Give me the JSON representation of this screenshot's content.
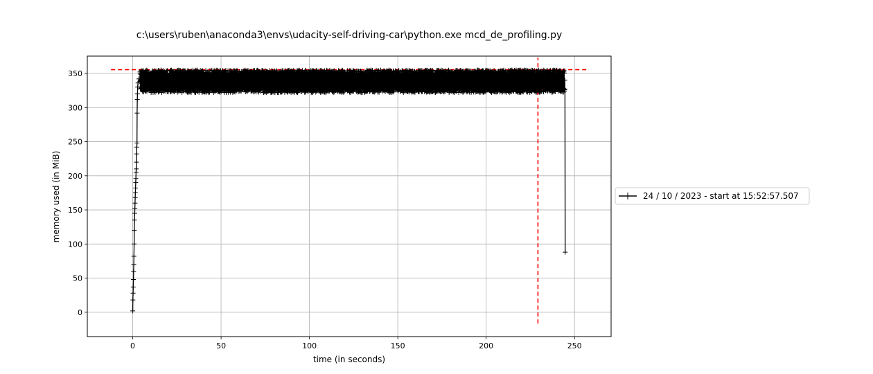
{
  "chart_data": {
    "type": "line",
    "title": "c:\\users\\ruben\\anaconda3\\envs\\udacity-self-driving-car\\python.exe mcd_de_profiling.py",
    "xlabel": "time (in seconds)",
    "ylabel": "memory used (in MiB)",
    "xlim": [
      -25.7,
      270.7
    ],
    "ylim": [
      -35.7,
      375.4
    ],
    "xticks": [
      0,
      50,
      100,
      150,
      200,
      250
    ],
    "yticks": [
      0,
      50,
      100,
      150,
      200,
      250,
      300,
      350
    ],
    "grid": true,
    "legend_position": "right",
    "series": [
      {
        "name": "24 / 10 / 2023 - start at 15:52:57.507",
        "color": "#000000",
        "marker": "+",
        "x": [
          0.0,
          0.1,
          0.2,
          0.3,
          0.4,
          0.5,
          0.6,
          0.7,
          0.8,
          0.9,
          1.0,
          1.1,
          1.2,
          1.3,
          1.4,
          1.5,
          1.6,
          1.7,
          1.8,
          1.9,
          2.0,
          2.1,
          2.2,
          2.3,
          2.4,
          2.5,
          2.6,
          2.7,
          2.8,
          3.0,
          3.5,
          4.0
        ],
        "y": [
          2,
          18,
          28,
          37,
          48,
          60,
          70,
          82,
          100,
          120,
          135,
          145,
          152,
          160,
          168,
          175,
          182,
          190,
          196,
          205,
          210,
          220,
          232,
          242,
          248,
          292,
          312,
          320,
          330,
          336,
          342,
          338
        ],
        "plateau": {
          "x_start": 4.0,
          "x_end": 244.5,
          "y_min": 322,
          "y_max": 355,
          "points_per_second": 10
        },
        "tail": {
          "x": [
            244.5,
            244.6,
            244.7
          ],
          "y": [
            340,
            327,
            88
          ]
        }
      }
    ],
    "reference_lines": {
      "max_memory": {
        "y": 355.5,
        "x_range": [
          -12.3,
          257.3
        ],
        "color": "#ff0000",
        "style": "dashed"
      },
      "max_time": {
        "x": 229.3,
        "y_range": [
          -16.6,
          373.1
        ],
        "color": "#ff0000",
        "style": "dashed"
      }
    }
  }
}
